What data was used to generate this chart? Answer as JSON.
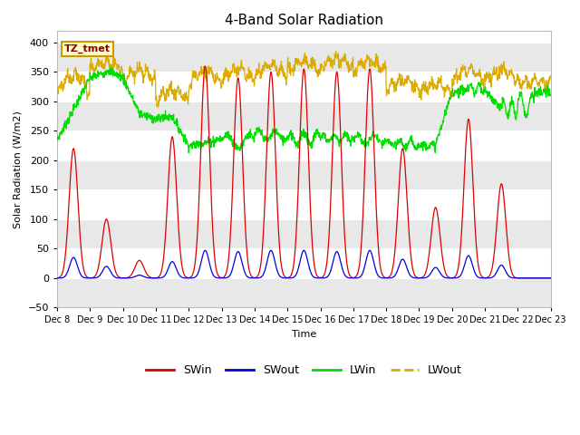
{
  "title": "4-Band Solar Radiation",
  "ylabel": "Solar Radiation (W/m2)",
  "xlabel": "Time",
  "annotation": "TZ_tmet",
  "ylim": [
    -50,
    420
  ],
  "xlim": [
    0,
    360
  ],
  "xtick_labels": [
    "Dec 8",
    "Dec 9",
    "Dec 10",
    "Dec 11",
    "Dec 12",
    "Dec 13",
    "Dec 14",
    "Dec 15",
    "Dec 16",
    "Dec 17",
    "Dec 18",
    "Dec 19",
    "Dec 20",
    "Dec 21",
    "Dec 22",
    "Dec 23"
  ],
  "ytick_values": [
    -50,
    0,
    50,
    100,
    150,
    200,
    250,
    300,
    350,
    400
  ],
  "colors": {
    "SWin": "#dd0000",
    "SWout": "#0000dd",
    "LWin": "#00dd00",
    "LWout": "#ddaa00"
  },
  "legend_entries": [
    "SWin",
    "SWout",
    "LWin",
    "LWout"
  ],
  "background_color": "#ffffff",
  "plot_background": "#ffffff",
  "n_days": 15
}
